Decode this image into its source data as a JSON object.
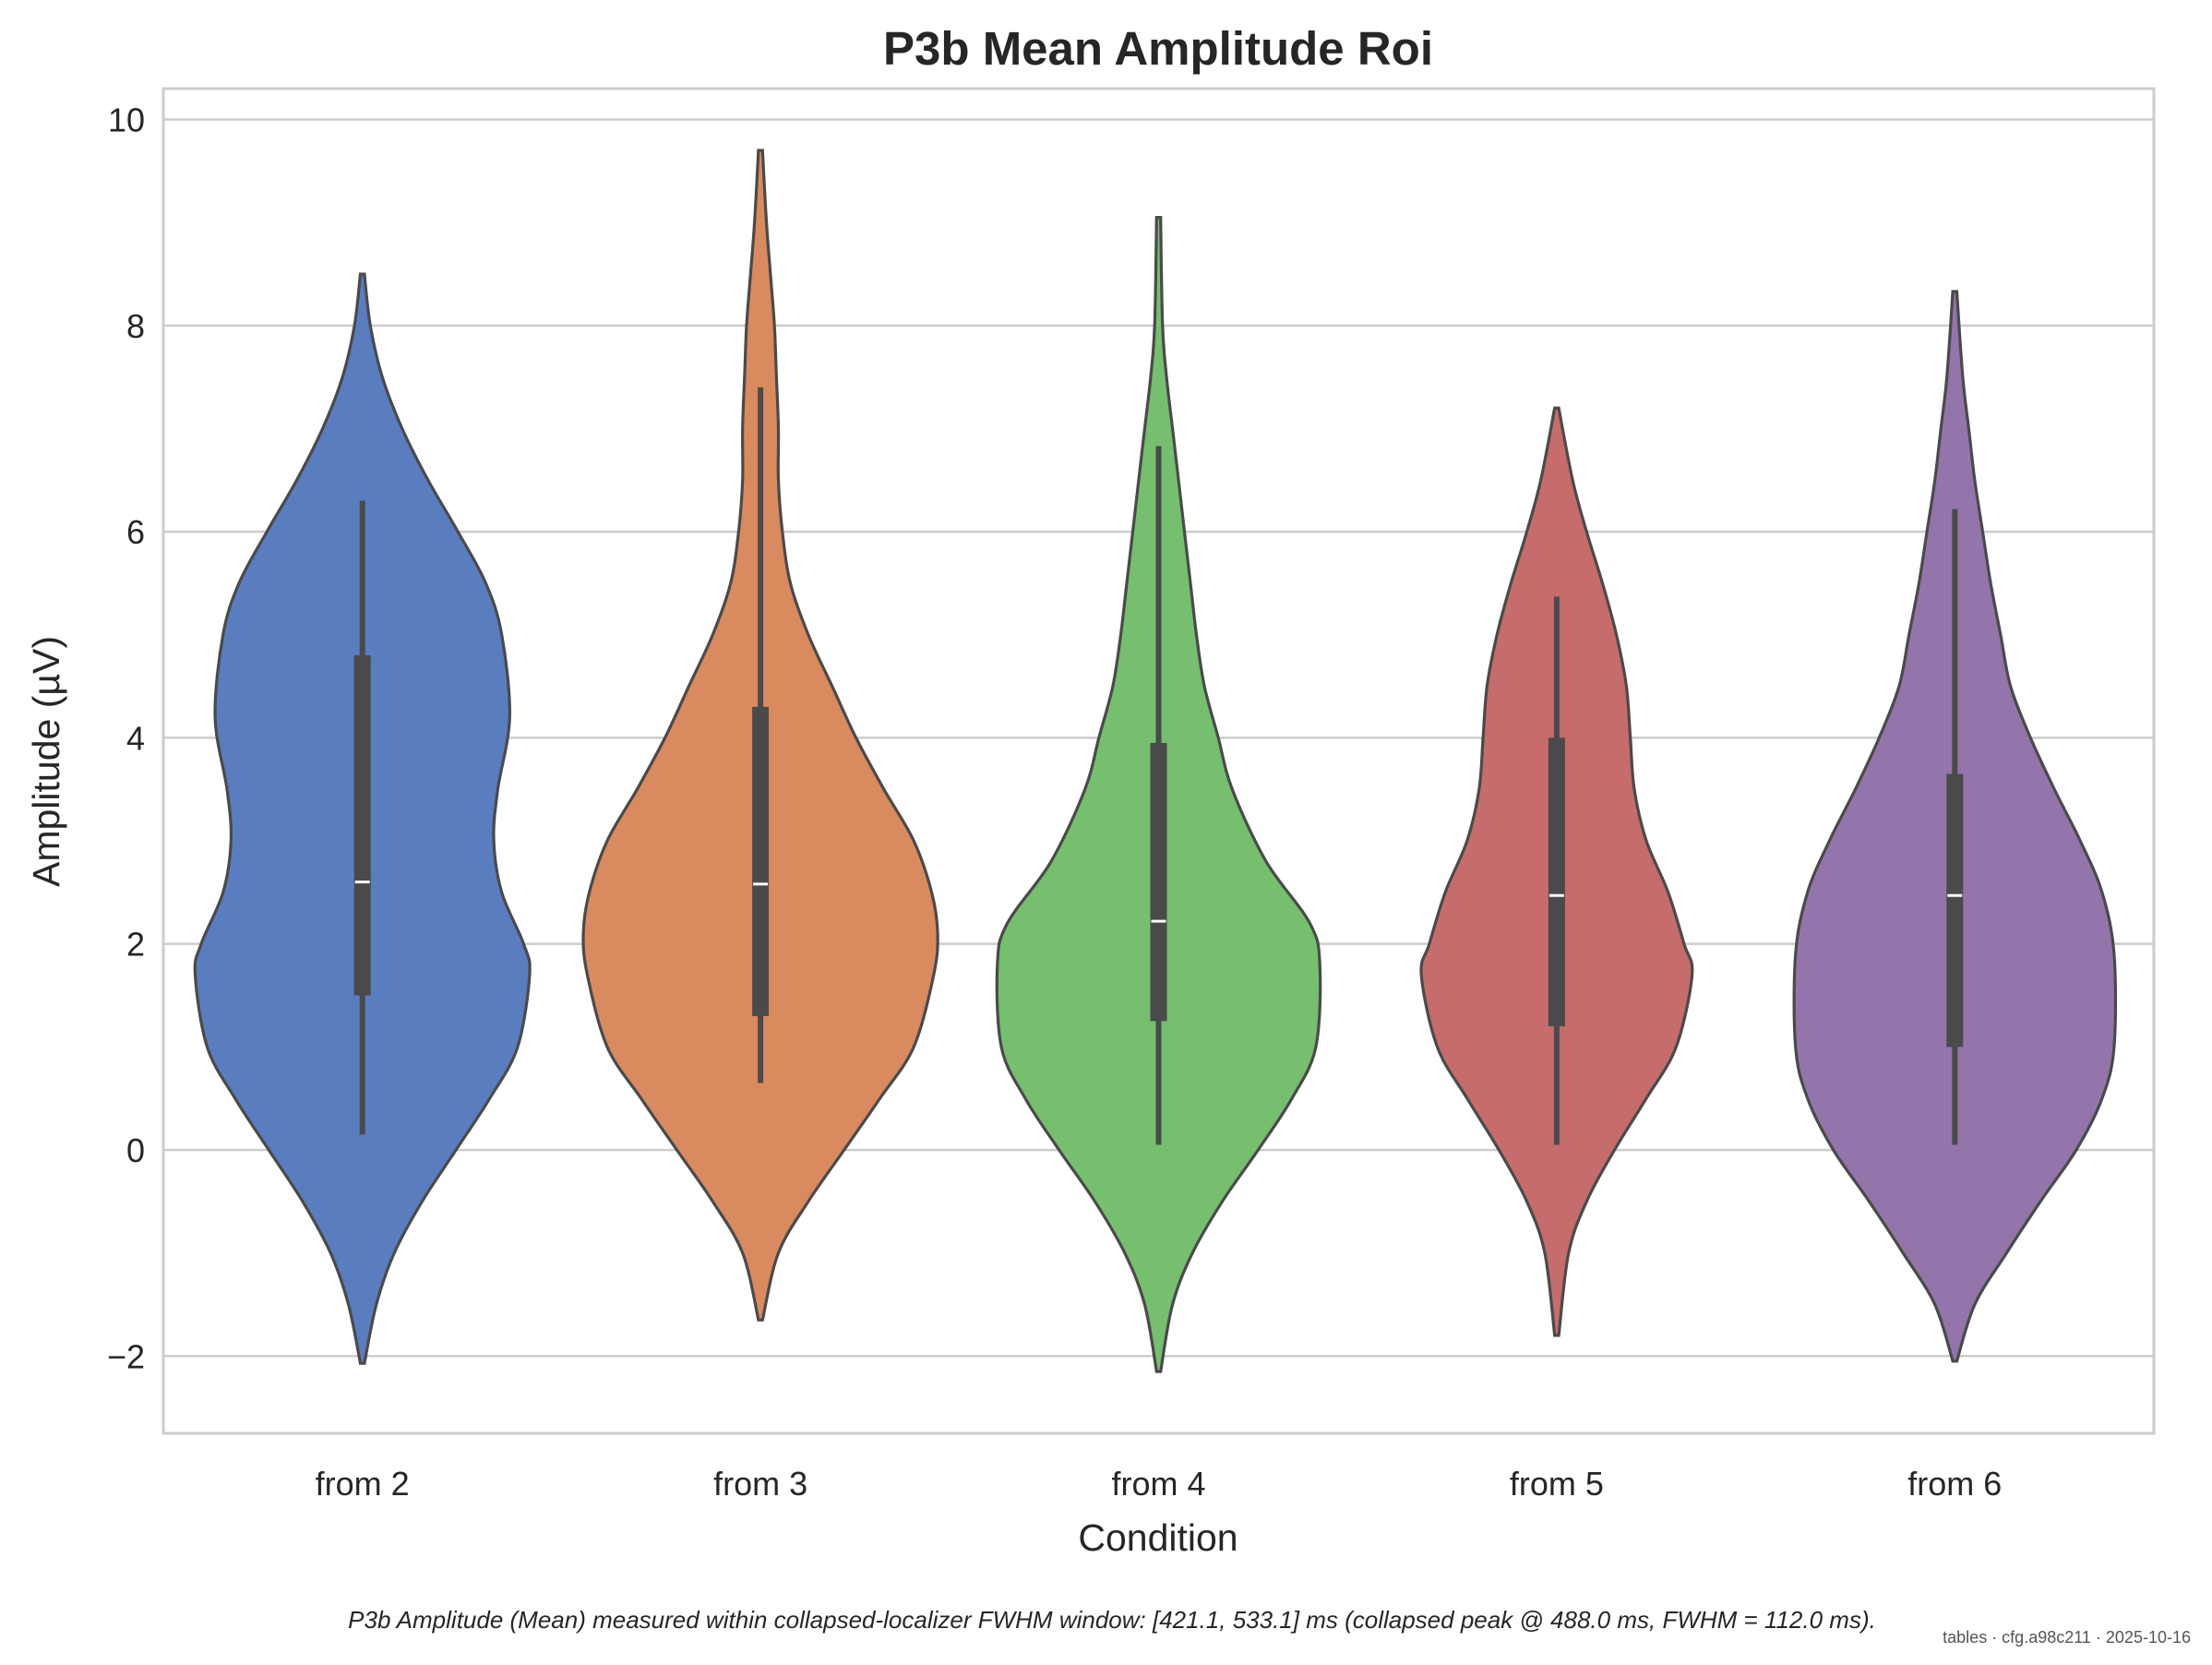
{
  "chart_data": {
    "type": "violin",
    "title": "P3b Mean Amplitude Roi",
    "xlabel": "Condition",
    "ylabel": "Amplitude (µV)",
    "ylim": [
      -2.75,
      10.3
    ],
    "yticks": [
      -2,
      0,
      2,
      4,
      6,
      8,
      10
    ],
    "ytick_labels": [
      "−2",
      "0",
      "2",
      "4",
      "6",
      "8",
      "10"
    ],
    "grid": true,
    "categories": [
      "from 2",
      "from 3",
      "from 4",
      "from 5",
      "from 6"
    ],
    "colors": [
      "#5a7dc0",
      "#d98a5e",
      "#75bf6f",
      "#c66c6c",
      "#9375ab"
    ],
    "violins": [
      {
        "category": "from 2",
        "min": -2.07,
        "max": 8.5,
        "whisker_low": 0.15,
        "whisker_high": 6.3,
        "q1": 1.5,
        "q3": 4.8,
        "median": 2.6,
        "profile": [
          [
            -2.07,
            0.01
          ],
          [
            -1.5,
            0.07
          ],
          [
            -1.0,
            0.16
          ],
          [
            -0.5,
            0.3
          ],
          [
            0.0,
            0.47
          ],
          [
            0.5,
            0.64
          ],
          [
            1.0,
            0.78
          ],
          [
            1.7,
            0.84
          ],
          [
            2.0,
            0.81
          ],
          [
            2.5,
            0.7
          ],
          [
            3.0,
            0.66
          ],
          [
            3.5,
            0.68
          ],
          [
            4.2,
            0.74
          ],
          [
            5.0,
            0.7
          ],
          [
            5.5,
            0.62
          ],
          [
            6.0,
            0.48
          ],
          [
            6.5,
            0.33
          ],
          [
            7.0,
            0.2
          ],
          [
            7.5,
            0.1
          ],
          [
            8.0,
            0.04
          ],
          [
            8.5,
            0.01
          ]
        ]
      },
      {
        "category": "from 3",
        "min": -1.65,
        "max": 9.7,
        "whisker_low": 0.65,
        "whisker_high": 7.4,
        "q1": 1.3,
        "q3": 4.3,
        "median": 2.58,
        "profile": [
          [
            -1.65,
            0.01
          ],
          [
            -1.0,
            0.09
          ],
          [
            -0.5,
            0.24
          ],
          [
            0.0,
            0.42
          ],
          [
            0.5,
            0.6
          ],
          [
            1.0,
            0.77
          ],
          [
            1.7,
            0.87
          ],
          [
            2.1,
            0.89
          ],
          [
            2.5,
            0.86
          ],
          [
            3.0,
            0.77
          ],
          [
            3.5,
            0.62
          ],
          [
            4.0,
            0.48
          ],
          [
            4.5,
            0.36
          ],
          [
            5.0,
            0.24
          ],
          [
            5.5,
            0.15
          ],
          [
            6.0,
            0.11
          ],
          [
            6.5,
            0.09
          ],
          [
            7.0,
            0.09
          ],
          [
            7.5,
            0.08
          ],
          [
            8.0,
            0.07
          ],
          [
            8.5,
            0.05
          ],
          [
            9.0,
            0.03
          ],
          [
            9.7,
            0.01
          ]
        ]
      },
      {
        "category": "from 4",
        "min": -2.15,
        "max": 9.05,
        "whisker_low": 0.05,
        "whisker_high": 6.83,
        "q1": 1.25,
        "q3": 3.95,
        "median": 2.22,
        "profile": [
          [
            -2.15,
            0.01
          ],
          [
            -1.5,
            0.07
          ],
          [
            -1.0,
            0.17
          ],
          [
            -0.5,
            0.32
          ],
          [
            0.0,
            0.5
          ],
          [
            0.5,
            0.67
          ],
          [
            1.0,
            0.79
          ],
          [
            1.8,
            0.81
          ],
          [
            2.2,
            0.76
          ],
          [
            2.8,
            0.54
          ],
          [
            3.5,
            0.37
          ],
          [
            4.0,
            0.3
          ],
          [
            4.5,
            0.23
          ],
          [
            5.0,
            0.19
          ],
          [
            5.5,
            0.16
          ],
          [
            6.0,
            0.13
          ],
          [
            6.5,
            0.1
          ],
          [
            7.0,
            0.07
          ],
          [
            7.5,
            0.04
          ],
          [
            8.0,
            0.02
          ],
          [
            9.05,
            0.01
          ]
        ]
      },
      {
        "category": "from 5",
        "min": -1.8,
        "max": 7.2,
        "whisker_low": 0.05,
        "whisker_high": 5.37,
        "q1": 1.2,
        "q3": 4.0,
        "median": 2.47,
        "profile": [
          [
            -1.8,
            0.01
          ],
          [
            -1.0,
            0.06
          ],
          [
            -0.5,
            0.15
          ],
          [
            0.0,
            0.29
          ],
          [
            0.5,
            0.45
          ],
          [
            1.0,
            0.6
          ],
          [
            1.7,
            0.68
          ],
          [
            2.0,
            0.64
          ],
          [
            2.5,
            0.56
          ],
          [
            3.0,
            0.45
          ],
          [
            3.5,
            0.39
          ],
          [
            4.0,
            0.37
          ],
          [
            4.5,
            0.35
          ],
          [
            5.0,
            0.3
          ],
          [
            5.5,
            0.23
          ],
          [
            6.0,
            0.15
          ],
          [
            6.5,
            0.08
          ],
          [
            7.2,
            0.01
          ]
        ]
      },
      {
        "category": "from 6",
        "min": -2.05,
        "max": 8.33,
        "whisker_low": 0.05,
        "whisker_high": 6.22,
        "q1": 1.0,
        "q3": 3.65,
        "median": 2.47,
        "profile": [
          [
            -2.05,
            0.01
          ],
          [
            -1.5,
            0.1
          ],
          [
            -1.0,
            0.26
          ],
          [
            -0.5,
            0.43
          ],
          [
            0.0,
            0.61
          ],
          [
            0.5,
            0.74
          ],
          [
            1.0,
            0.8
          ],
          [
            1.9,
            0.8
          ],
          [
            2.5,
            0.74
          ],
          [
            3.0,
            0.63
          ],
          [
            3.5,
            0.5
          ],
          [
            4.0,
            0.38
          ],
          [
            4.5,
            0.28
          ],
          [
            5.0,
            0.23
          ],
          [
            5.5,
            0.18
          ],
          [
            6.0,
            0.14
          ],
          [
            6.5,
            0.1
          ],
          [
            7.0,
            0.07
          ],
          [
            7.5,
            0.04
          ],
          [
            8.33,
            0.01
          ]
        ]
      }
    ]
  },
  "caption": "P3b Amplitude (Mean) measured within collapsed-localizer FWHM window: [421.1, 533.1] ms (collapsed peak @ 488.0 ms, FWHM = 112.0 ms).",
  "watermark": "tables · cfg.a98c211 · 2025-10-16"
}
